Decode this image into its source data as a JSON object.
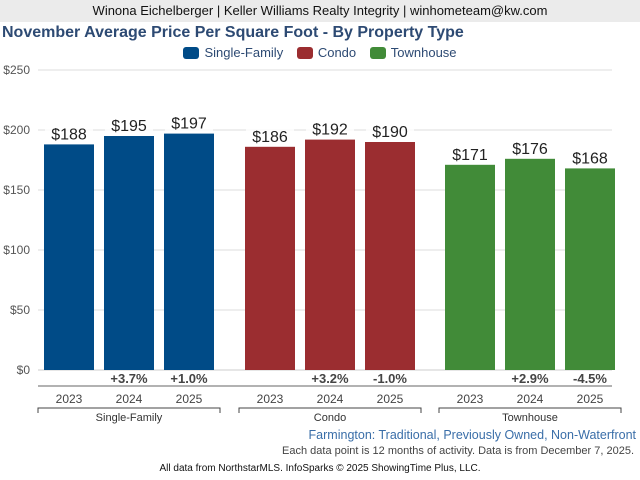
{
  "header": {
    "text": "Winona Eichelberger | Keller Williams Realty Integrity | winhometeam@kw.com"
  },
  "chart_data": {
    "type": "bar",
    "title": "November Average Price Per Square Foot - By Property Type",
    "ylim": [
      0,
      250
    ],
    "yticks": [
      "$0",
      "$50",
      "$100",
      "$150",
      "$200",
      "$250"
    ],
    "ytick_values": [
      0,
      50,
      100,
      150,
      200,
      250
    ],
    "grid": true,
    "legend": {
      "position": "top-center",
      "entries": [
        {
          "name": "Single-Family",
          "color": "#004b87"
        },
        {
          "name": "Condo",
          "color": "#9b2d30"
        },
        {
          "name": "Townhouse",
          "color": "#418b38"
        }
      ]
    },
    "groups": [
      {
        "name": "Single-Family",
        "color": "#004b87",
        "categories": [
          "2023",
          "2024",
          "2025"
        ],
        "values": [
          188,
          195,
          197
        ],
        "labels": [
          "$188",
          "$195",
          "$197"
        ],
        "changes": [
          "",
          "+3.7%",
          "+1.0%"
        ]
      },
      {
        "name": "Condo",
        "color": "#9b2d30",
        "categories": [
          "2023",
          "2024",
          "2025"
        ],
        "values": [
          186,
          192,
          190
        ],
        "labels": [
          "$186",
          "$192",
          "$190"
        ],
        "changes": [
          "",
          "+3.2%",
          "-1.0%"
        ]
      },
      {
        "name": "Townhouse",
        "color": "#418b38",
        "categories": [
          "2023",
          "2024",
          "2025"
        ],
        "values": [
          171,
          176,
          168
        ],
        "labels": [
          "$171",
          "$176",
          "$168"
        ],
        "changes": [
          "",
          "+2.9%",
          "-4.5%"
        ]
      }
    ]
  },
  "subtitle": "Farmington: Traditional, Previously Owned, Non-Waterfront",
  "note": "Each data point is 12 months of activity. Data is from December 7, 2025.",
  "footer": "All data from NorthstarMLS. InfoSparks © 2025 ShowingTime Plus, LLC."
}
